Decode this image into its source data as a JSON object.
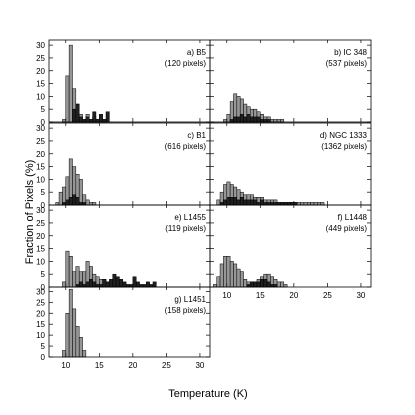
{
  "figure": {
    "ylabel": "Fraction of Pixels (%)",
    "xlabel": "Temperature (K)",
    "xticks": [
      "10",
      "15",
      "20",
      "25",
      "30"
    ]
  },
  "chart_data": [
    {
      "type": "bar",
      "label": "a) B5",
      "pixels": "(120 pixels)",
      "xlim": [
        7.5,
        31.5
      ],
      "ylim": [
        0,
        32
      ],
      "yticks": [
        0,
        5,
        10,
        15,
        20,
        25,
        30
      ],
      "bin_width": 0.5,
      "series": [
        {
          "name": "",
          "color": "#969696",
          "x": [
            9.5,
            10.0,
            10.5,
            11.0,
            11.5,
            12.0,
            12.5,
            13.0,
            13.5,
            14.0,
            14.5,
            15.0,
            15.5
          ],
          "values": [
            1,
            18,
            30,
            13,
            7,
            3,
            1,
            3,
            1,
            2,
            1,
            1,
            1
          ]
        },
        {
          "name": "",
          "color": "#202020",
          "x": [
            11.0,
            11.5,
            12.0,
            12.5,
            13.0,
            13.5,
            14.0,
            14.5,
            15.0,
            15.5,
            16.0
          ],
          "values": [
            5,
            7,
            2,
            1,
            2,
            1,
            4,
            1,
            3,
            1,
            4
          ]
        }
      ]
    },
    {
      "type": "bar",
      "label": "b) IC 348",
      "pixels": "(537 pixels)",
      "xlim": [
        7.5,
        31.5
      ],
      "ylim": [
        0,
        32
      ],
      "yticks": [
        0,
        5,
        10,
        15,
        20,
        25,
        30
      ],
      "bin_width": 0.5,
      "series": [
        {
          "name": "",
          "color": "#969696",
          "x": [
            9.5,
            10.0,
            10.5,
            11.0,
            11.5,
            12.0,
            12.5,
            13.0,
            13.5,
            14.0,
            14.5,
            15.0,
            15.5,
            16.0,
            16.5,
            17.0,
            17.5,
            18.0
          ],
          "values": [
            1,
            3,
            8,
            11,
            10,
            9,
            7,
            6,
            5,
            5,
            4,
            3,
            2,
            2,
            1,
            1,
            1,
            1
          ]
        },
        {
          "name": "",
          "color": "#202020",
          "x": [
            10.5,
            11.0,
            11.5,
            12.0,
            12.5,
            13.0,
            13.5,
            14.0,
            14.5,
            15.0,
            15.5,
            16.0
          ],
          "values": [
            1,
            2,
            2,
            3,
            2,
            3,
            2,
            2,
            2,
            1,
            1,
            1
          ]
        }
      ]
    },
    {
      "type": "bar",
      "label": "c) B1",
      "pixels": "(616 pixels)",
      "xlim": [
        7.5,
        31.5
      ],
      "ylim": [
        0,
        32
      ],
      "yticks": [
        0,
        5,
        10,
        15,
        20,
        25,
        30
      ],
      "bin_width": 0.5,
      "series": [
        {
          "name": "",
          "color": "#969696",
          "x": [
            8.5,
            9.0,
            9.5,
            10.0,
            10.5,
            11.0,
            11.5,
            12.0,
            12.5,
            13.0,
            13.5,
            14.0
          ],
          "values": [
            1,
            5,
            7,
            11,
            18,
            15,
            12,
            10,
            4,
            2,
            1,
            1
          ]
        },
        {
          "name": "",
          "color": "#202020",
          "x": [
            9.5,
            10.0,
            10.5,
            11.0,
            11.5,
            12.0,
            12.5
          ],
          "values": [
            1,
            2,
            3,
            4,
            3,
            1,
            1
          ]
        }
      ]
    },
    {
      "type": "bar",
      "label": "d) NGC 1333",
      "pixels": "(1362 pixels)",
      "xlim": [
        7.5,
        31.5
      ],
      "ylim": [
        0,
        32
      ],
      "yticks": [
        0,
        5,
        10,
        15,
        20,
        25,
        30
      ],
      "bin_width": 0.5,
      "series": [
        {
          "name": "",
          "color": "#969696",
          "x": [
            8.5,
            9.0,
            9.5,
            10.0,
            10.5,
            11.0,
            11.5,
            12.0,
            12.5,
            13.0,
            13.5,
            14.0,
            14.5,
            15.0,
            15.5,
            16.0,
            16.5,
            17.0,
            17.5,
            18.0,
            18.5,
            19.0,
            19.5,
            20.0,
            20.5,
            21.0,
            21.5,
            22.0,
            22.5,
            23.0,
            23.5,
            24.0
          ],
          "values": [
            2,
            5,
            8,
            9,
            8,
            7,
            6,
            5,
            4,
            4,
            4,
            3,
            3,
            3,
            2,
            2,
            2,
            2,
            1,
            1,
            1,
            1,
            1,
            1,
            1,
            1,
            1,
            1,
            1,
            1,
            1,
            1
          ]
        },
        {
          "name": "",
          "color": "#202020",
          "x": [
            9.0,
            9.5,
            10.0,
            10.5,
            11.0,
            11.5,
            12.0,
            12.5,
            13.0,
            13.5,
            14.0,
            14.5,
            15.0,
            15.5,
            16.0,
            16.5,
            17.0,
            17.5,
            18.0,
            18.5,
            19.0,
            19.5,
            20.0
          ],
          "values": [
            1,
            2,
            3,
            3,
            3,
            2,
            3,
            2,
            2,
            2,
            2,
            1,
            2,
            1,
            1,
            1,
            1,
            1,
            1,
            1,
            1,
            1,
            1
          ]
        }
      ]
    },
    {
      "type": "bar",
      "label": "e) L1455",
      "pixels": "(119 pixels)",
      "xlim": [
        7.5,
        31.5
      ],
      "ylim": [
        0,
        32
      ],
      "yticks": [
        0,
        5,
        10,
        15,
        20,
        25,
        30
      ],
      "bin_width": 0.5,
      "series": [
        {
          "name": "",
          "color": "#969696",
          "x": [
            9.5,
            10.0,
            10.5,
            11.0,
            11.5,
            12.0,
            12.5,
            13.0,
            13.5,
            14.0,
            14.5,
            15.0,
            15.5,
            16.0,
            16.5,
            17.0,
            17.5,
            18.0
          ],
          "values": [
            2,
            14,
            12,
            6,
            8,
            6,
            6,
            10,
            8,
            5,
            4,
            3,
            3,
            2,
            2,
            1,
            1,
            1
          ]
        },
        {
          "name": "",
          "color": "#202020",
          "x": [
            11.5,
            12.0,
            12.5,
            13.0,
            13.5,
            14.0,
            14.5,
            15.0,
            15.5,
            16.0,
            16.5,
            17.0,
            17.5,
            18.0,
            18.5,
            19.0,
            19.5,
            20.0,
            20.5,
            21.0,
            21.5,
            22.0,
            22.5,
            23.0
          ],
          "values": [
            1,
            2,
            1,
            2,
            3,
            2,
            1,
            1,
            3,
            2,
            3,
            5,
            4,
            3,
            2,
            1,
            1,
            4,
            2,
            1,
            1,
            2,
            1,
            2
          ]
        }
      ]
    },
    {
      "type": "bar",
      "label": "f) L1448",
      "pixels": "(449 pixels)",
      "xlim": [
        7.5,
        31.5
      ],
      "ylim": [
        0,
        32
      ],
      "yticks": [
        0,
        5,
        10,
        15,
        20,
        25,
        30
      ],
      "bin_width": 0.5,
      "series": [
        {
          "name": "",
          "color": "#969696",
          "x": [
            8.0,
            8.5,
            9.0,
            9.5,
            10.0,
            10.5,
            11.0,
            11.5,
            12.0,
            12.5,
            13.0,
            13.5,
            14.0,
            14.5,
            15.0,
            15.5,
            16.0,
            16.5,
            17.0,
            17.5,
            18.0,
            18.5
          ],
          "values": [
            1,
            4,
            9,
            12,
            12,
            10,
            9,
            7,
            6,
            3,
            2,
            2,
            2,
            3,
            4,
            5,
            5,
            4,
            3,
            2,
            2,
            1
          ]
        },
        {
          "name": "",
          "color": "#202020",
          "x": [
            13.0,
            13.5,
            14.0,
            14.5,
            15.0,
            15.5,
            16.0,
            16.5,
            17.0
          ],
          "values": [
            1,
            2,
            2,
            2,
            3,
            3,
            2,
            1,
            1
          ]
        }
      ]
    },
    {
      "type": "bar",
      "label": "g) L1451",
      "pixels": "(158 pixels)",
      "xlim": [
        7.5,
        31.5
      ],
      "ylim": [
        0,
        32
      ],
      "yticks": [
        0,
        5,
        10,
        15,
        20,
        25,
        30
      ],
      "bin_width": 0.5,
      "series": [
        {
          "name": "",
          "color": "#969696",
          "x": [
            9.5,
            10.0,
            10.5,
            11.0,
            11.5,
            12.0,
            12.5
          ],
          "values": [
            3,
            20,
            31,
            22,
            14,
            9,
            3
          ]
        }
      ]
    }
  ]
}
